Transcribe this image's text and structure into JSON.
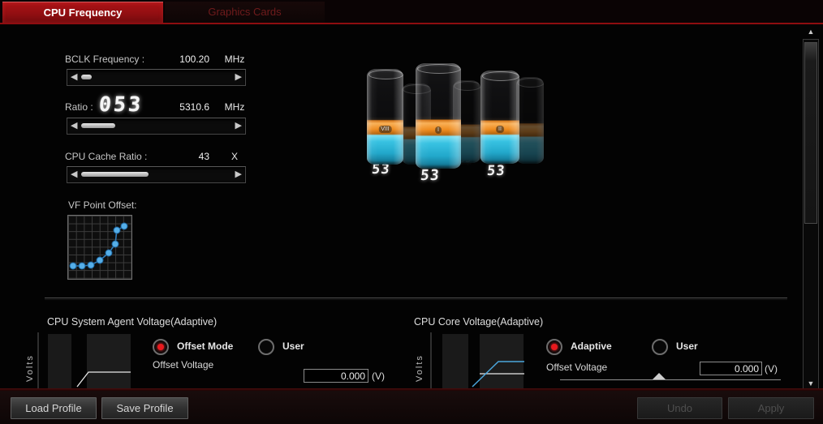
{
  "tabs": {
    "cpu_frequency": "CPU Frequency",
    "graphics_cards": "Graphics Cards"
  },
  "bclk": {
    "label": "BCLK Frequency :",
    "value": "100.20",
    "unit": "MHz"
  },
  "ratio": {
    "label": "Ratio :",
    "digits": "053",
    "value": "5310.6",
    "unit": "MHz"
  },
  "cache_ratio": {
    "label": "CPU Cache Ratio :",
    "value": "43",
    "unit": "X"
  },
  "vf": {
    "label": "VF Point Offset:"
  },
  "chart_data": {
    "type": "line",
    "title": "VF Point Offset",
    "points": [
      [
        6,
        62
      ],
      [
        17,
        62
      ],
      [
        28,
        61
      ],
      [
        39,
        55
      ],
      [
        50,
        46
      ],
      [
        58,
        35
      ],
      [
        60,
        18
      ],
      [
        69,
        13
      ]
    ],
    "line_color": "#2e7fc0",
    "point_fill": "#55aee8",
    "point_stroke": "#1d659f"
  },
  "cylinders": {
    "front": [
      {
        "core": "VIII",
        "value": "53"
      },
      {
        "core": "I",
        "value": "53"
      },
      {
        "core": "II",
        "value": "53"
      }
    ],
    "back_values": [
      "53",
      "53",
      "53"
    ]
  },
  "sa_voltage": {
    "title": "CPU System Agent Voltage(Adaptive)",
    "axis_label": "Volts",
    "radio_offset": "Offset Mode",
    "radio_user": "User",
    "offset_label": "Offset Voltage",
    "offset_value": "0.000",
    "unit": "(V)"
  },
  "core_voltage": {
    "title": "CPU Core Voltage(Adaptive)",
    "axis_label": "Volts",
    "radio_adaptive": "Adaptive",
    "radio_user": "User",
    "offset_label": "Offset Voltage",
    "offset_value": "0.000",
    "unit": "(V)"
  },
  "footer": {
    "load": "Load Profile",
    "save": "Save Profile",
    "undo": "Undo",
    "apply": "Apply"
  },
  "icons": {
    "slider_left": "◀",
    "slider_right": "▶",
    "scroll_up": "▲",
    "scroll_down": "▼"
  },
  "colors": {
    "accent_red": "#8e0d10",
    "radio_selected": "#e8191d",
    "orange": "#ef8c1f",
    "cyan": "#38c2e2"
  }
}
